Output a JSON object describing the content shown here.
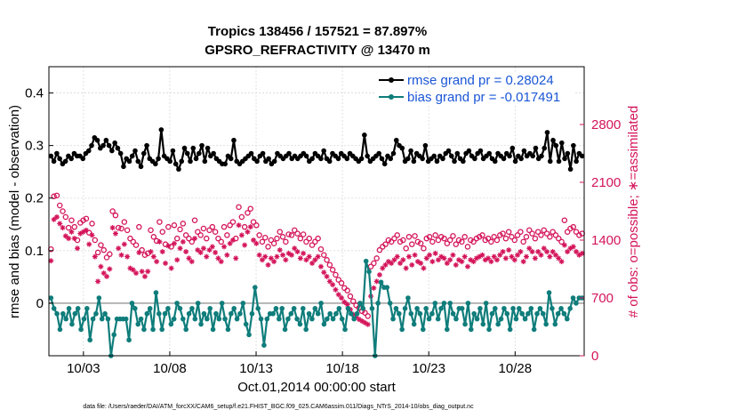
{
  "colors": {
    "rmse": "#000000",
    "bias": "#0f7d7b",
    "possible": "#d4145a",
    "assimilated": "#d4145a",
    "right_axis": "#d4145a",
    "legend_text": "#1a56d6",
    "zero_line": "#b5b5b5",
    "grid": "#d9d9d9"
  },
  "chart_data": {
    "type": "line",
    "title_line1": "Tropics 138456 / 157521 = 87.897%",
    "title_line2": "GPSRO_REFRACTIVITY @ 13470 m",
    "ylabel_left": "rmse and bias (model - observation)",
    "ylabel_right": "# of obs: o=possible; ∗=assimilated",
    "xlabel": "Oct.01,2014 00:00:00 start",
    "footer": "data file: /Users/raeder/DAI/ATM_forcXX/CAM6_setup/f.e21.FHIST_BGC.f09_025.CAM6assim.011/Diags_NTrS_2014-10/obs_diag_output.nc",
    "x_range_days": [
      1.0,
      32.0
    ],
    "x_ticks": [
      {
        "value": 3,
        "label": "10/03"
      },
      {
        "value": 8,
        "label": "10/08"
      },
      {
        "value": 13,
        "label": "10/13"
      },
      {
        "value": 18,
        "label": "10/18"
      },
      {
        "value": 23,
        "label": "10/23"
      },
      {
        "value": 28,
        "label": "10/28"
      }
    ],
    "ylim_left": [
      -0.1,
      0.45
    ],
    "y_ticks_left": [
      {
        "value": 0,
        "label": "0"
      },
      {
        "value": 0.1,
        "label": "0.1"
      },
      {
        "value": 0.2,
        "label": "0.2"
      },
      {
        "value": 0.3,
        "label": "0.3"
      },
      {
        "value": 0.4,
        "label": "0.4"
      }
    ],
    "ylim_right": [
      0,
      3500
    ],
    "y_ticks_right": [
      {
        "value": 0,
        "label": "0"
      },
      {
        "value": 700,
        "label": "700"
      },
      {
        "value": 1400,
        "label": "1400"
      },
      {
        "value": 2100,
        "label": "2100"
      },
      {
        "value": 2800,
        "label": "2800"
      }
    ],
    "legend": [
      {
        "series": "rmse",
        "label": "rmse grand pr = 0.28024"
      },
      {
        "series": "bias",
        "label": "bias grand pr = -0.017491"
      }
    ],
    "series": [
      {
        "name": "rmse",
        "axis": "left",
        "values": [
          0.28,
          0.27,
          0.285,
          0.275,
          0.265,
          0.27,
          0.28,
          0.275,
          0.285,
          0.28,
          0.28,
          0.275,
          0.285,
          0.29,
          0.3,
          0.315,
          0.31,
          0.295,
          0.3,
          0.31,
          0.3,
          0.29,
          0.305,
          0.295,
          0.285,
          0.26,
          0.275,
          0.27,
          0.28,
          0.29,
          0.27,
          0.26,
          0.285,
          0.3,
          0.275,
          0.27,
          0.265,
          0.275,
          0.33,
          0.28,
          0.275,
          0.27,
          0.29,
          0.265,
          0.255,
          0.27,
          0.295,
          0.285,
          0.27,
          0.295,
          0.275,
          0.285,
          0.3,
          0.27,
          0.295,
          0.28,
          0.285,
          0.275,
          0.27,
          0.265,
          0.265,
          0.28,
          0.275,
          0.31,
          0.27,
          0.265,
          0.27,
          0.275,
          0.28,
          0.285,
          0.275,
          0.27,
          0.28,
          0.285,
          0.27,
          0.275,
          0.265,
          0.27,
          0.285,
          0.28,
          0.275,
          0.28,
          0.285,
          0.275,
          0.28,
          0.275,
          0.28,
          0.285,
          0.28,
          0.27,
          0.275,
          0.285,
          0.28,
          0.275,
          0.29,
          0.275,
          0.27,
          0.285,
          0.28,
          0.275,
          0.285,
          0.28,
          0.275,
          0.285,
          0.28,
          0.275,
          0.27,
          0.275,
          0.32,
          0.28,
          0.27,
          0.275,
          0.28,
          0.285,
          0.275,
          0.265,
          0.28,
          0.275,
          0.285,
          0.31,
          0.3,
          0.295,
          0.27,
          0.275,
          0.29,
          0.27,
          0.285,
          0.28,
          0.275,
          0.3,
          0.27,
          0.275,
          0.28,
          0.27,
          0.28,
          0.275,
          0.285,
          0.29,
          0.28,
          0.27,
          0.285,
          0.275,
          0.27,
          0.285,
          0.29,
          0.28,
          0.275,
          0.285,
          0.29,
          0.275,
          0.28,
          0.285,
          0.275,
          0.27,
          0.285,
          0.28,
          0.275,
          0.285,
          0.28,
          0.295,
          0.27,
          0.28,
          0.275,
          0.29,
          0.28,
          0.285,
          0.28,
          0.295,
          0.275,
          0.28,
          0.295,
          0.325,
          0.27,
          0.31,
          0.3,
          0.27,
          0.305,
          0.275,
          0.285,
          0.255,
          0.3,
          0.27,
          0.285,
          0.28
        ]
      },
      {
        "name": "bias",
        "axis": "left",
        "values": [
          0.01,
          -0.01,
          -0.02,
          -0.05,
          -0.02,
          -0.03,
          -0.01,
          -0.04,
          -0.02,
          -0.01,
          -0.05,
          -0.03,
          -0.01,
          -0.07,
          -0.03,
          -0.02,
          0.01,
          -0.03,
          -0.02,
          -0.03,
          -0.1,
          -0.06,
          -0.03,
          -0.03,
          -0.03,
          -0.03,
          -0.07,
          0.0,
          -0.01,
          -0.04,
          -0.03,
          -0.05,
          -0.02,
          -0.01,
          -0.05,
          0.02,
          -0.02,
          -0.05,
          -0.02,
          -0.01,
          -0.04,
          -0.03,
          0.0,
          -0.01,
          -0.03,
          -0.05,
          -0.02,
          -0.01,
          -0.03,
          0.0,
          -0.04,
          -0.02,
          -0.03,
          -0.01,
          -0.05,
          -0.02,
          -0.03,
          0.0,
          -0.03,
          -0.05,
          -0.02,
          -0.01,
          -0.03,
          -0.02,
          0.0,
          -0.04,
          -0.06,
          -0.02,
          0.03,
          -0.01,
          -0.03,
          -0.08,
          -0.03,
          -0.02,
          -0.02,
          -0.01,
          -0.03,
          -0.01,
          -0.05,
          -0.03,
          -0.02,
          -0.01,
          -0.03,
          -0.04,
          -0.01,
          -0.05,
          -0.02,
          -0.03,
          -0.01,
          -0.02,
          0.0,
          -0.04,
          -0.03,
          -0.02,
          -0.03,
          -0.02,
          -0.01,
          -0.03,
          -0.05,
          -0.01,
          -0.02,
          -0.03,
          -0.02,
          0.0,
          -0.01,
          0.08,
          0.06,
          -0.01,
          -0.1,
          0.0,
          0.04,
          0.03,
          0.03,
          0.0,
          -0.03,
          -0.01,
          -0.02,
          -0.05,
          -0.01,
          0.01,
          -0.02,
          -0.04,
          -0.01,
          -0.02,
          -0.05,
          -0.01,
          -0.03,
          -0.02,
          0.0,
          -0.03,
          -0.01,
          0.0,
          -0.05,
          0.0,
          -0.02,
          -0.03,
          -0.01,
          -0.01,
          -0.04,
          0.0,
          -0.05,
          -0.02,
          -0.03,
          -0.01,
          -0.04,
          0.0,
          -0.05,
          -0.02,
          -0.01,
          -0.04,
          -0.03,
          -0.01,
          -0.02,
          -0.05,
          -0.01,
          -0.03,
          -0.01,
          -0.02,
          -0.03,
          -0.02,
          -0.01,
          -0.05,
          -0.02,
          -0.01,
          -0.02,
          -0.04,
          0.02,
          -0.01,
          -0.04,
          -0.02,
          -0.01,
          -0.02,
          -0.03,
          -0.01,
          0.01,
          0.0,
          0.01,
          0.01
        ]
      },
      {
        "name": "possible",
        "axis": "right",
        "values": [
          1290,
          1930,
          1940,
          1820,
          1750,
          1680,
          1550,
          1640,
          1560,
          1400,
          1610,
          1640,
          1660,
          1490,
          1600,
          1400,
          1250,
          1340,
          1280,
          1190,
          1230,
          1750,
          1700,
          1550,
          1540,
          1620,
          1520,
          1420,
          1380,
          1340,
          1560,
          1280,
          1220,
          1240,
          1520,
          1440,
          1390,
          1620,
          1500,
          1350,
          1560,
          1320,
          1580,
          1420,
          1530,
          1600,
          1460,
          1420,
          1380,
          1640,
          1500,
          1460,
          1540,
          1420,
          1520,
          1560,
          1500,
          1420,
          1380,
          1560,
          1460,
          1580,
          1620,
          1420,
          1800,
          1680,
          1560,
          1730,
          1780,
          1620,
          1580,
          1460,
          1380,
          1430,
          1320,
          1400,
          1360,
          1420,
          1500,
          1440,
          1380,
          1470,
          1460,
          1520,
          1480,
          1420,
          1470,
          1380,
          1420,
          1340,
          1380,
          1420,
          1290,
          1220,
          1160,
          1100,
          1040,
          980,
          920,
          880,
          820,
          790,
          720,
          660,
          610,
          580,
          540,
          520,
          480,
          1080,
          1120,
          1180,
          1280,
          1320,
          1350,
          1400,
          1380,
          1420,
          1460,
          1380,
          1400,
          1300,
          1440,
          1350,
          1450,
          1380,
          1360,
          1300,
          1420,
          1440,
          1380,
          1460,
          1400,
          1440,
          1420,
          1360,
          1400,
          1450,
          1350,
          1400,
          1380,
          1440,
          1320,
          1400,
          1380,
          1420,
          1440,
          1460,
          1400,
          1420,
          1380,
          1440,
          1400,
          1460,
          1480,
          1420,
          1500,
          1440,
          1400,
          1460,
          1500,
          1380,
          1440,
          1520,
          1480,
          1420,
          1500,
          1460,
          1520,
          1480,
          1440,
          1500,
          1460,
          1420,
          1380,
          1640,
          1500,
          1540,
          1560,
          1500,
          1460,
          1480
        ]
      },
      {
        "name": "assimilated",
        "axis": "right",
        "values": [
          1150,
          1650,
          1680,
          1600,
          1550,
          1450,
          1420,
          1500,
          1420,
          1300,
          1480,
          1500,
          1520,
          1350,
          1460,
          1200,
          900,
          1080,
          1000,
          960,
          1050,
          1550,
          1480,
          1300,
          1220,
          1350,
          1200,
          1060,
          1040,
          1000,
          1250,
          1020,
          960,
          1020,
          1260,
          1200,
          1140,
          1380,
          1260,
          1120,
          1330,
          1060,
          1360,
          1160,
          1300,
          1380,
          1260,
          1180,
          1140,
          1420,
          1280,
          1250,
          1300,
          1200,
          1280,
          1320,
          1250,
          1180,
          1140,
          1320,
          1220,
          1360,
          1400,
          1180,
          1580,
          1460,
          1340,
          1500,
          1560,
          1400,
          1360,
          1220,
          1160,
          1200,
          1100,
          1180,
          1140,
          1200,
          1280,
          1220,
          1160,
          1240,
          1220,
          1300,
          1260,
          1180,
          1240,
          1160,
          1200,
          1120,
          1160,
          1200,
          1080,
          1010,
          960,
          900,
          860,
          800,
          740,
          700,
          650,
          620,
          560,
          500,
          470,
          440,
          420,
          400,
          380,
          720,
          820,
          900,
          980,
          1060,
          1100,
          1140,
          1120,
          1160,
          1200,
          1120,
          1160,
          1060,
          1200,
          1100,
          1220,
          1140,
          1120,
          1060,
          1180,
          1220,
          1140,
          1240,
          1160,
          1200,
          1180,
          1120,
          1160,
          1220,
          1100,
          1160,
          1140,
          1200,
          1080,
          1160,
          1140,
          1180,
          1200,
          1220,
          1160,
          1180,
          1140,
          1200,
          1160,
          1220,
          1260,
          1180,
          1280,
          1200,
          1160,
          1220,
          1260,
          1140,
          1200,
          1300,
          1260,
          1180,
          1260,
          1220,
          1300,
          1260,
          1200,
          1260,
          1220,
          1180,
          1140,
          1340,
          1260,
          1300,
          1320,
          1260,
          1220,
          1240
        ]
      }
    ]
  }
}
